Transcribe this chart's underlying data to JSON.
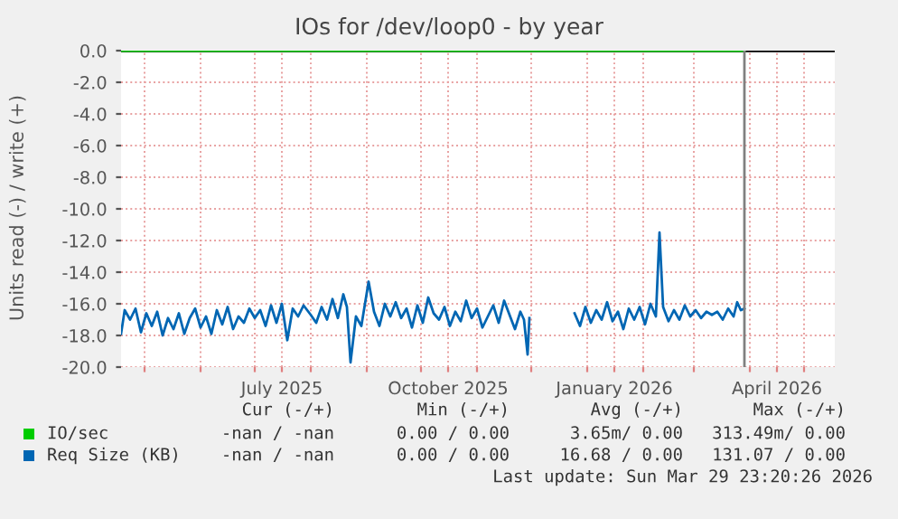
{
  "chart_data": {
    "type": "line",
    "title": "IOs for /dev/loop0 - by year",
    "ylabel": "Units read (-) / write (+)",
    "xlim": [
      "2025-04-18",
      "2026-05-18"
    ],
    "ylim": [
      -20,
      0
    ],
    "yticks": [
      {
        "value": -20,
        "label": "-20.0"
      },
      {
        "value": -18,
        "label": "-18.0"
      },
      {
        "value": -16,
        "label": "-16.0"
      },
      {
        "value": -14,
        "label": "-14.0"
      },
      {
        "value": -12,
        "label": "-12.0"
      },
      {
        "value": -10,
        "label": "-10.0"
      },
      {
        "value": -8,
        "label": "-8.0"
      },
      {
        "value": -6,
        "label": "-6.0"
      },
      {
        "value": -4,
        "label": "-4.0"
      },
      {
        "value": -2,
        "label": "-2.0"
      },
      {
        "value": 0,
        "label": "0.0"
      }
    ],
    "xticks": [
      {
        "value": "2025-05-01",
        "label": null
      },
      {
        "value": "2025-06-01",
        "label": null
      },
      {
        "value": "2025-07-01",
        "label": null
      },
      {
        "value": "2025-07-16",
        "label": "July 2025"
      },
      {
        "value": "2025-08-01",
        "label": null
      },
      {
        "value": "2025-09-01",
        "label": null
      },
      {
        "value": "2025-10-01",
        "label": null
      },
      {
        "value": "2025-10-16",
        "label": "October 2025"
      },
      {
        "value": "2025-11-01",
        "label": null
      },
      {
        "value": "2025-12-01",
        "label": null
      },
      {
        "value": "2026-01-01",
        "label": null
      },
      {
        "value": "2026-01-16",
        "label": "January 2026"
      },
      {
        "value": "2026-02-01",
        "label": null
      },
      {
        "value": "2026-03-01",
        "label": null
      },
      {
        "value": "2026-04-01",
        "label": null
      },
      {
        "value": "2026-04-16",
        "label": "April 2026"
      },
      {
        "value": "2026-05-01",
        "label": null
      }
    ],
    "grid": true,
    "legend": "bottom",
    "ref_lines": [
      {
        "axis": "x",
        "value": "2026-03-29",
        "label": null,
        "color": "#808080"
      }
    ],
    "annotations": [
      "Cur (-/+)",
      "Min (-/+)",
      "Avg (-/+)",
      "Max (-/+)",
      "-nan / -nan",
      "0.00 / 0.00",
      "3.65m/ 0.00",
      "313.49m/ 0.00",
      "-nan / -nan",
      "0.00 / 0.00",
      "16.68 / 0.00",
      "131.07 / 0.00",
      "Last update: Sun Mar 29 23:20:26 2026"
    ],
    "series": [
      {
        "name": "IO/sec",
        "color": "#00cc00",
        "x": [
          "2025-04-18",
          "2026-03-29"
        ],
        "values": [
          0,
          0
        ]
      },
      {
        "name": "Req Size (KB)",
        "color": "#0066b3",
        "x": [
          "2025-04-18",
          "2025-04-20",
          "2025-04-23",
          "2025-04-26",
          "2025-04-29",
          "2025-05-02",
          "2025-05-05",
          "2025-05-08",
          "2025-05-11",
          "2025-05-14",
          "2025-05-17",
          "2025-05-20",
          "2025-05-23",
          "2025-05-26",
          "2025-05-29",
          "2025-06-01",
          "2025-06-04",
          "2025-06-07",
          "2025-06-10",
          "2025-06-13",
          "2025-06-16",
          "2025-06-19",
          "2025-06-22",
          "2025-06-25",
          "2025-06-28",
          "2025-07-01",
          "2025-07-04",
          "2025-07-07",
          "2025-07-10",
          "2025-07-13",
          "2025-07-16",
          "2025-07-19",
          "2025-07-22",
          "2025-07-25",
          "2025-07-28",
          "2025-08-01",
          "2025-08-04",
          "2025-08-07",
          "2025-08-10",
          "2025-08-13",
          "2025-08-16",
          "2025-08-19",
          "2025-08-21",
          "2025-08-23",
          "2025-08-26",
          "2025-08-29",
          "2025-09-02",
          "2025-09-05",
          "2025-09-08",
          "2025-09-11",
          "2025-09-14",
          "2025-09-17",
          "2025-09-20",
          "2025-09-23",
          "2025-09-26",
          "2025-09-29",
          "2025-10-02",
          "2025-10-05",
          "2025-10-08",
          "2025-10-11",
          "2025-10-14",
          "2025-10-17",
          "2025-10-20",
          "2025-10-23",
          "2025-10-26",
          "2025-10-29",
          "2025-11-01",
          "2025-11-04",
          "2025-11-07",
          "2025-11-10",
          "2025-11-13",
          "2025-11-16",
          "2025-11-19",
          "2025-11-22",
          "2025-11-25",
          "2025-11-27",
          "2025-11-29",
          "2025-11-30",
          "2025-12-12",
          "2025-12-25",
          "2025-12-28",
          "2025-12-31",
          "2026-01-03",
          "2026-01-06",
          "2026-01-09",
          "2026-01-12",
          "2026-01-15",
          "2026-01-18",
          "2026-01-21",
          "2026-01-24",
          "2026-01-27",
          "2026-01-30",
          "2026-02-02",
          "2026-02-05",
          "2026-02-08",
          "2026-02-10",
          "2026-02-12",
          "2026-02-15",
          "2026-02-18",
          "2026-02-21",
          "2026-02-24",
          "2026-02-27",
          "2026-03-02",
          "2026-03-05",
          "2026-03-08",
          "2026-03-11",
          "2026-03-14",
          "2026-03-17",
          "2026-03-20",
          "2026-03-23",
          "2026-03-25",
          "2026-03-27",
          "2026-03-29"
        ],
        "values": [
          -17.9,
          -16.4,
          -17.0,
          -16.3,
          -17.8,
          -16.6,
          -17.4,
          -16.5,
          -18.0,
          -16.9,
          -17.6,
          -16.6,
          -17.9,
          -16.9,
          -16.3,
          -17.5,
          -16.8,
          -17.9,
          -16.4,
          -17.3,
          -16.2,
          -17.6,
          -16.8,
          -17.2,
          -16.3,
          -16.9,
          -16.4,
          -17.4,
          -16.1,
          -17.2,
          -16.0,
          -18.3,
          -16.3,
          -16.8,
          -16.1,
          -16.7,
          -17.2,
          -16.2,
          -17.0,
          -15.7,
          -16.9,
          -15.4,
          -16.2,
          -19.7,
          -16.8,
          -17.4,
          -14.6,
          -16.5,
          -17.4,
          -16.0,
          -16.8,
          -15.9,
          -16.9,
          -16.3,
          -17.5,
          -16.1,
          -17.2,
          -15.6,
          -16.6,
          -17.0,
          -16.2,
          -17.4,
          -16.5,
          -17.1,
          -15.8,
          -16.9,
          -16.3,
          -17.5,
          -16.8,
          -16.1,
          -17.2,
          -15.8,
          -16.7,
          -17.6,
          -16.5,
          -17.0,
          -19.2,
          -16.9,
          null,
          -16.6,
          -17.4,
          -16.2,
          -17.2,
          -16.4,
          -17.0,
          -15.9,
          -17.1,
          -16.5,
          -17.6,
          -16.3,
          -17.0,
          -16.2,
          -17.3,
          -16.0,
          -16.8,
          -11.5,
          -16.2,
          -17.1,
          -16.4,
          -17.0,
          -16.1,
          -16.8,
          -16.4,
          -16.9,
          -16.5,
          -16.7,
          -16.5,
          -17.0,
          -16.3,
          -16.8,
          -15.9,
          -16.4,
          -16.3
        ]
      }
    ]
  }
}
